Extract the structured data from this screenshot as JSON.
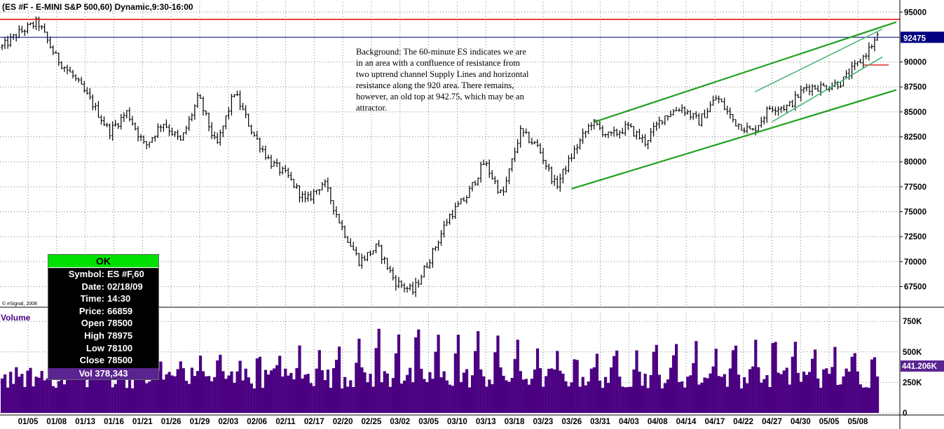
{
  "header": {
    "title": "(ES #F - E-MINI S&P 500,60) Dynamic,9:30-16:00"
  },
  "watermark": "© eSignal, 2008",
  "annotation": {
    "lines": [
      "Background:  The 60-minute ES indicates we are",
      "in an area with a confluence of resistance from",
      "two uptrend channel Supply Lines and horizontal",
      "resistance along the 920 area.  There remains,",
      "however, an old top at 942.75, which may be an",
      "attractor."
    ]
  },
  "info_box": {
    "status": "OK",
    "rows": [
      {
        "k": "Symbol:",
        "v": "ES #F,60"
      },
      {
        "k": "Date:",
        "v": "02/18/09"
      },
      {
        "k": "Time:",
        "v": "14:30"
      },
      {
        "k": "Price:",
        "v": "66859"
      },
      {
        "k": "Open",
        "v": "78500"
      },
      {
        "k": "High",
        "v": "78975"
      },
      {
        "k": "Low",
        "v": "78100"
      },
      {
        "k": "Close",
        "v": "78500"
      }
    ],
    "vol": "Vol 378,343"
  },
  "colors": {
    "background": "#ffffff",
    "bars": "#000000",
    "volume": "#4b0082",
    "resistance_line": "#e00000",
    "current_price_line": "#000080",
    "channel_lines": "#20a020",
    "inner_channel_lines": "#3cb371",
    "grid": "#808080",
    "price_tag_bg": "#000080",
    "volume_tag_bg": "#5a2490"
  },
  "chart_data": [
    {
      "type": "candlestick",
      "title": "(ES #F - E-MINI S&P 500,60) Dynamic,9:30-16:00",
      "x_dates": [
        "01/05",
        "01/08",
        "01/13",
        "01/16",
        "01/21",
        "01/26",
        "01/29",
        "02/03",
        "02/06",
        "02/11",
        "02/17",
        "02/20",
        "02/25",
        "03/02",
        "03/05",
        "03/10",
        "03/13",
        "03/18",
        "03/23",
        "03/26",
        "03/31",
        "04/03",
        "04/08",
        "04/14",
        "04/17",
        "04/22",
        "04/27",
        "04/30",
        "05/05",
        "05/08"
      ],
      "y_ticks": [
        67500,
        70000,
        72500,
        75000,
        77500,
        80000,
        82500,
        85000,
        87500,
        90000,
        92475,
        95000
      ],
      "ylim": [
        65500,
        96000
      ],
      "last_price_label": "92475",
      "last_price": 92475,
      "grid": true,
      "price_anchors": [
        91500,
        93000,
        94000,
        90500,
        88500,
        86000,
        83000,
        85000,
        81500,
        84000,
        82000,
        86500,
        81500,
        87000,
        83000,
        80000,
        78500,
        76000,
        78000,
        73500,
        70000,
        71500,
        68000,
        67000,
        70500,
        74500,
        76500,
        80000,
        76500,
        83000,
        81500,
        77500,
        81000,
        84000,
        82500,
        83500,
        82000,
        84500,
        85500,
        84000,
        86500,
        84000,
        83000,
        85500,
        85500,
        87500,
        87500,
        88000,
        90000,
        92500
      ],
      "horizontal_lines": [
        {
          "label": "old top resistance",
          "price": 94275
        },
        {
          "label": "last price",
          "price": 92475
        },
        {
          "label": "short marker",
          "price": 89700
        }
      ],
      "trend_lines": [
        {
          "kind": "outer supply",
          "from": [
            "03/30",
            84000
          ],
          "to": [
            "05/08",
            94000
          ]
        },
        {
          "kind": "outer demand",
          "from": [
            "03/26",
            77300
          ],
          "to": [
            "05/08",
            87200
          ]
        },
        {
          "kind": "inner supply",
          "from": [
            "04/24",
            87000
          ],
          "to": [
            "05/08",
            93300
          ]
        },
        {
          "kind": "inner demand",
          "from": [
            "04/27",
            84000
          ],
          "to": [
            "05/08",
            90500
          ]
        }
      ]
    },
    {
      "type": "bar",
      "title": "Volume",
      "y_ticks": [
        "0",
        "250K",
        "500K",
        "750K"
      ],
      "y_values": [
        0,
        250000,
        500000,
        750000
      ],
      "ylim": [
        0,
        820000
      ],
      "last_value_label": "441.206K",
      "last_value": 441206,
      "bar_count": 310,
      "session_high_volumes": [
        310000,
        380000,
        460000,
        430000,
        520000,
        490000,
        560000,
        600000,
        740000,
        650000,
        700000,
        540000,
        480000,
        560000,
        590000,
        610000,
        660000,
        560000,
        520000
      ]
    }
  ]
}
